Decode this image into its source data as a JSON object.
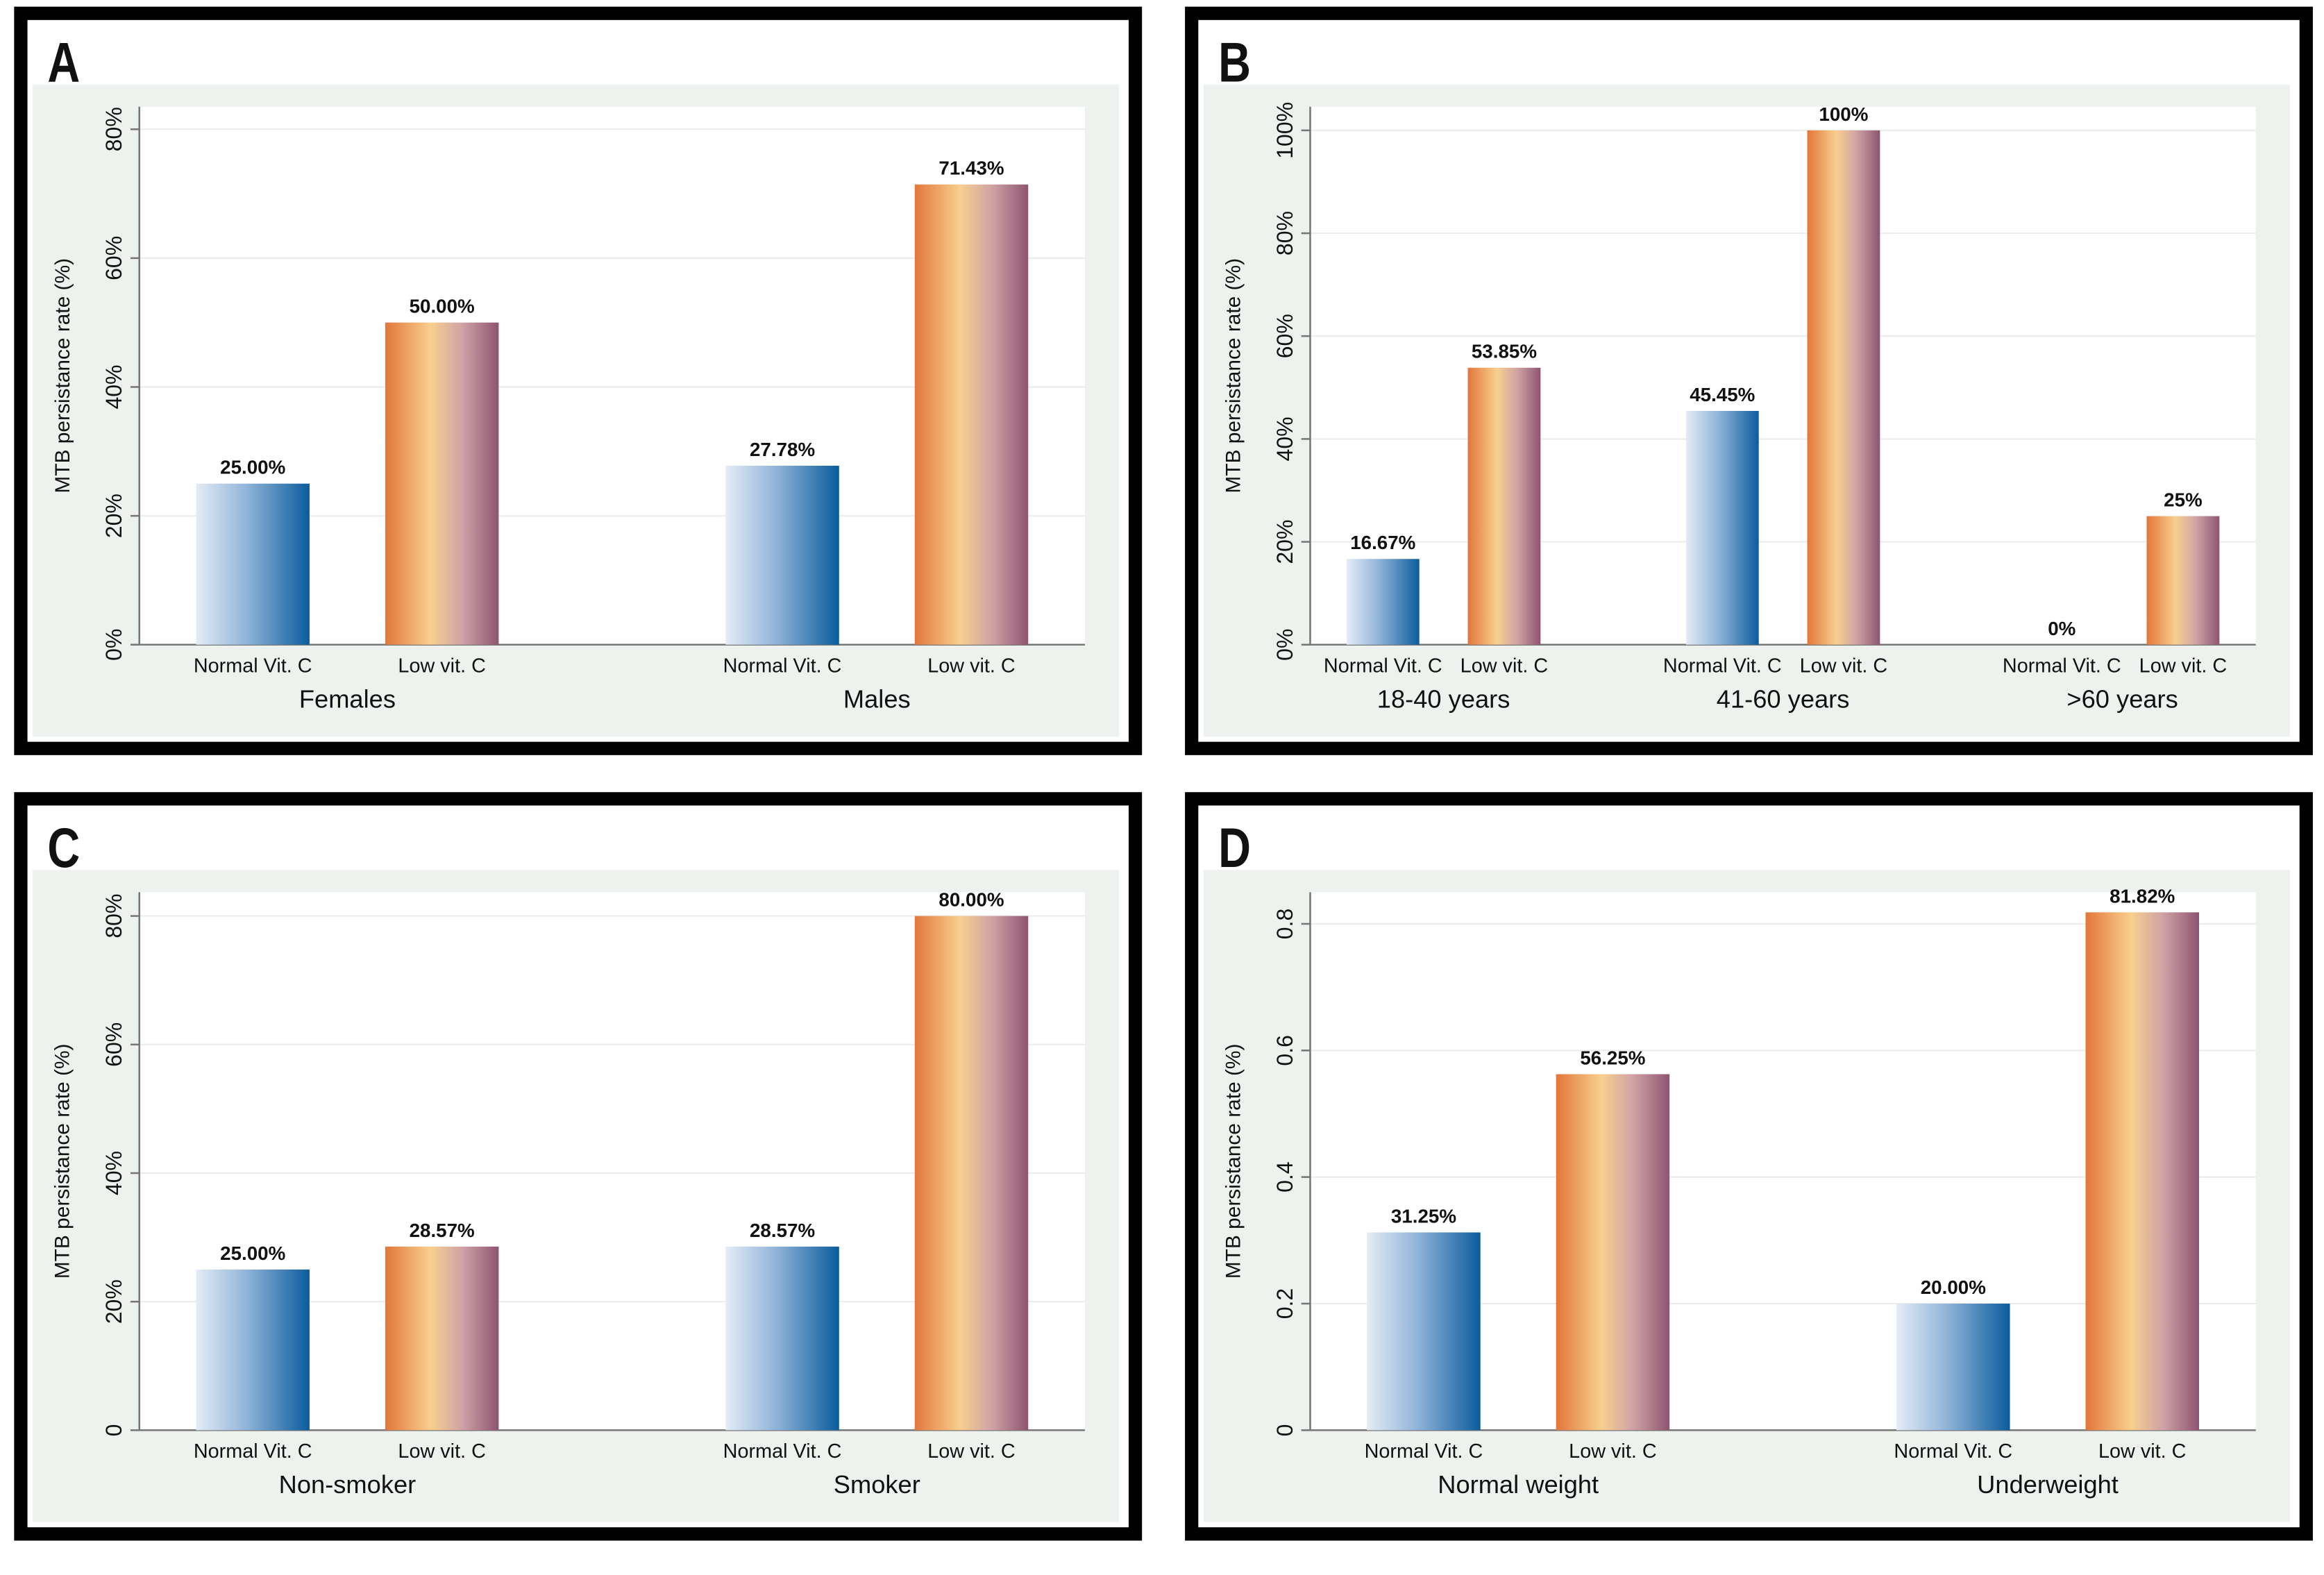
{
  "chart_data": [
    {
      "type": "bar",
      "panel": "A",
      "ylabel": "MTB persistance rate (%)",
      "categories": [
        "Females",
        "Males"
      ],
      "series": [
        {
          "name": "Normal Vit. C",
          "color": "#0b5c9c",
          "values": [
            25,
            27.78
          ],
          "value_labels": [
            "25.00%",
            "27.78%"
          ]
        },
        {
          "name": "Low vit. C",
          "color": "#8e5470",
          "values": [
            50,
            71.43
          ],
          "value_labels": [
            "50.00%",
            "71.43%"
          ]
        }
      ],
      "ylim": [
        0,
        83.5
      ],
      "yticks": [
        {
          "value": 0,
          "label": "0%"
        },
        {
          "value": 20,
          "label": "20%"
        },
        {
          "value": 40,
          "label": "40%"
        },
        {
          "value": 60,
          "label": "60%"
        },
        {
          "value": 80,
          "label": "80%"
        }
      ],
      "grid": true
    },
    {
      "type": "bar",
      "panel": "B",
      "ylabel": "MTB persistance rate (%)",
      "categories": [
        "18-40 years",
        "41-60 years",
        ">60 years"
      ],
      "series": [
        {
          "name": "Normal Vit. C",
          "color": "#0b5c9c",
          "values": [
            16.67,
            45.45,
            0
          ],
          "value_labels": [
            "16.67%",
            "45.45%",
            "0%"
          ]
        },
        {
          "name": "Low vit. C",
          "color": "#8e5470",
          "values": [
            53.85,
            100,
            25
          ],
          "value_labels": [
            "53.85%",
            "100%",
            "25%"
          ]
        }
      ],
      "ylim": [
        0,
        104.6
      ],
      "yticks": [
        {
          "value": 0,
          "label": "0%"
        },
        {
          "value": 20,
          "label": "20%"
        },
        {
          "value": 40,
          "label": "40%"
        },
        {
          "value": 60,
          "label": "60%"
        },
        {
          "value": 80,
          "label": "80%"
        },
        {
          "value": 100,
          "label": "100%"
        }
      ],
      "grid": true
    },
    {
      "type": "bar",
      "panel": "C",
      "ylabel": "MTB persistance rate (%)",
      "categories": [
        "Non-smoker",
        "Smoker"
      ],
      "series": [
        {
          "name": "Normal Vit. C",
          "color": "#0b5c9c",
          "values": [
            25,
            28.57
          ],
          "value_labels": [
            "25.00%",
            "28.57%"
          ]
        },
        {
          "name": "Low vit. C",
          "color": "#8e5470",
          "values": [
            28.57,
            80
          ],
          "value_labels": [
            "28.57%",
            "80.00%"
          ]
        }
      ],
      "ylim": [
        0,
        83.7
      ],
      "yticks": [
        0,
        {
          "value": 20,
          "label": "20%"
        },
        {
          "value": 40,
          "label": "40%"
        },
        {
          "value": 60,
          "label": "60%"
        },
        {
          "value": 80,
          "label": "80%"
        }
      ],
      "grid": true
    },
    {
      "type": "bar",
      "panel": "D",
      "ylabel": "MTB persistance rate (%)",
      "categories": [
        "Normal weight",
        "Underweight"
      ],
      "series": [
        {
          "name": "Normal Vit. C",
          "color": "#0b5c9c",
          "values": [
            0.3125,
            0.2
          ],
          "value_labels": [
            "31.25%",
            "20.00%"
          ]
        },
        {
          "name": "Low vit. C",
          "color": "#8e5470",
          "values": [
            0.5625,
            0.8182
          ],
          "value_labels": [
            "56.25%",
            "81.82%"
          ]
        }
      ],
      "ylim": [
        0,
        0.85
      ],
      "yticks": [
        0,
        0.2,
        0.4,
        0.6,
        0.8
      ],
      "grid": true
    }
  ]
}
